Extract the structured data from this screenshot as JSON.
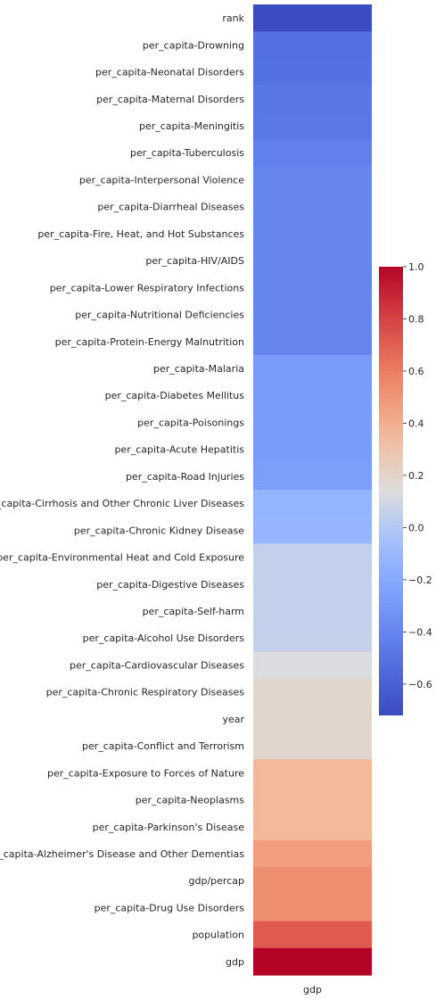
{
  "chart_data": {
    "type": "heatmap",
    "title": "",
    "xlabel": "",
    "ylabel": "",
    "columns": [
      "gdp"
    ],
    "rows": [
      "rank",
      "per_capita-Drowning",
      "per_capita-Neonatal Disorders",
      "per_capita-Maternal Disorders",
      "per_capita-Meningitis",
      "per_capita-Tuberculosis",
      "per_capita-Interpersonal Violence",
      "per_capita-Diarrheal Diseases",
      "per_capita-Fire, Heat, and Hot Substances",
      "per_capita-HIV/AIDS",
      "per_capita-Lower Respiratory Infections",
      "per_capita-Nutritional Deficiencies",
      "per_capita-Protein-Energy Malnutrition",
      "per_capita-Malaria",
      "per_capita-Diabetes Mellitus",
      "per_capita-Poisonings",
      "per_capita-Acute Hepatitis",
      "per_capita-Road Injuries",
      "per_capita-Cirrhosis and Other Chronic Liver Diseases",
      "per_capita-Chronic Kidney Disease",
      "per_capita-Environmental Heat and Cold Exposure",
      "per_capita-Digestive Diseases",
      "per_capita-Self-harm",
      "per_capita-Alcohol Use Disorders",
      "per_capita-Cardiovascular Diseases",
      "per_capita-Chronic Respiratory Diseases",
      "year",
      "per_capita-Conflict and Terrorism",
      "per_capita-Exposure to Forces of Nature",
      "per_capita-Neoplasms",
      "per_capita-Parkinson's Disease",
      "per_capita-Alzheimer's Disease and Other Dementias",
      "gdp/percap",
      "per_capita-Drug Use Disorders",
      "population",
      "gdp"
    ],
    "values": [
      -0.72,
      -0.52,
      -0.51,
      -0.48,
      -0.47,
      -0.43,
      -0.4,
      -0.4,
      -0.4,
      -0.4,
      -0.4,
      -0.4,
      -0.4,
      -0.28,
      -0.28,
      -0.28,
      -0.28,
      -0.26,
      -0.13,
      -0.12,
      0.05,
      0.05,
      0.05,
      0.06,
      0.13,
      0.19,
      0.19,
      0.19,
      0.36,
      0.36,
      0.36,
      0.47,
      0.53,
      0.53,
      0.72,
      1.0
    ],
    "colorbar": {
      "vmin": -0.72,
      "vmax": 1.0,
      "ticks": [
        -0.6,
        -0.4,
        -0.2,
        0.0,
        0.2,
        0.4,
        0.6,
        0.8,
        1.0
      ],
      "tick_labels": [
        "−0.6",
        "−0.4",
        "−0.2",
        "0.0",
        "0.2",
        "0.4",
        "0.6",
        "0.8",
        "1.0"
      ]
    },
    "colormap": "coolwarm",
    "grid": false
  }
}
